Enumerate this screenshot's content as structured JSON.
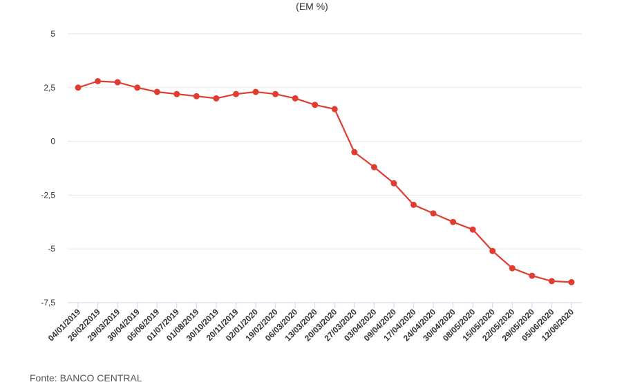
{
  "chart": {
    "subtitle": "(EM %)",
    "source": "Fonte: BANCO CENTRAL"
  },
  "chart_data": {
    "type": "line",
    "title": "",
    "subtitle": "(EM %)",
    "xlabel": "",
    "ylabel": "",
    "ylim": [
      -7.5,
      5
    ],
    "yticks": [
      5,
      2.5,
      0,
      -2.5,
      -5,
      -7.5
    ],
    "ytick_labels": [
      "5",
      "2,5",
      "0",
      "-2,5",
      "-5",
      "-7,5"
    ],
    "grid": true,
    "legend": "none",
    "color": "#e03c31",
    "categories": [
      "04/01/2019",
      "26/02/2019",
      "29/03/2019",
      "30/04/2019",
      "05/06/2019",
      "01/07/2019",
      "01/08/2019",
      "30/10/2019",
      "20/11/2019",
      "02/01/2020",
      "19/02/2020",
      "06/03/2020",
      "13/03/2020",
      "20/03/2020",
      "27/03/2020",
      "03/04/2020",
      "09/04/2020",
      "17/04/2020",
      "24/04/2020",
      "30/04/2020",
      "08/05/2020",
      "15/05/2020",
      "22/05/2020",
      "29/05/2020",
      "05/06/2020",
      "12/06/2020"
    ],
    "values": [
      2.5,
      2.8,
      2.75,
      2.5,
      2.3,
      2.2,
      2.1,
      2.0,
      2.2,
      2.3,
      2.2,
      2.0,
      1.7,
      1.5,
      -0.5,
      -1.2,
      -1.95,
      -2.95,
      -3.35,
      -3.75,
      -4.1,
      -5.1,
      -5.9,
      -6.25,
      -6.5,
      -6.55
    ]
  }
}
